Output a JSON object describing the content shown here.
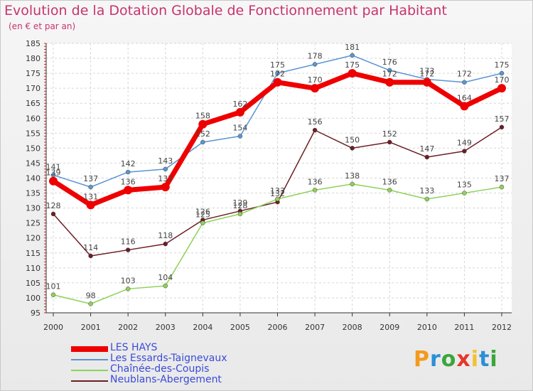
{
  "title": "Evolution de la Dotation Globale de Fonctionnement par Habitant",
  "subtitle": "(en € et par an)",
  "logo": {
    "text": "Proxiti",
    "letter_colors": [
      "#f39a1e",
      "#2c8fd6",
      "#3aa63a",
      "#e8352c",
      "#f2c12e",
      "#2c8fd6",
      "#3aa63a"
    ]
  },
  "chart_data": {
    "type": "line",
    "title": "Evolution de la Dotation Globale de Fonctionnement par Habitant",
    "subtitle": "(en € et par an)",
    "x": [
      "2000",
      "2001",
      "2002",
      "2003",
      "2004",
      "2005",
      "2006",
      "2007",
      "2008",
      "2009",
      "2010",
      "2011",
      "2012"
    ],
    "ylim": [
      95,
      185
    ],
    "yticks": [
      95,
      100,
      105,
      110,
      115,
      120,
      125,
      130,
      135,
      140,
      145,
      150,
      155,
      160,
      165,
      170,
      175,
      180,
      185
    ],
    "grid": true,
    "legend_position": "bottom-left",
    "series": [
      {
        "name": "Neublans-Abergement",
        "color": "#6b1e24",
        "values": [
          128,
          114,
          116,
          118,
          126,
          129,
          132,
          156,
          150,
          152,
          147,
          149,
          157
        ]
      },
      {
        "name": "Chaînée-des-Coupis",
        "color": "#8fd15a",
        "values": [
          101,
          98,
          103,
          104,
          125,
          128,
          133,
          136,
          138,
          136,
          133,
          135,
          137
        ]
      },
      {
        "name": "Les Essards-Taignevaux",
        "color": "#5b95d0",
        "values": [
          141,
          137,
          142,
          143,
          152,
          154,
          175,
          178,
          181,
          176,
          173,
          172,
          175
        ]
      },
      {
        "name": "LES HAYS",
        "color": "#ee0000",
        "values": [
          139,
          131,
          136,
          137,
          158,
          162,
          172,
          170,
          175,
          172,
          172,
          164,
          170
        ]
      }
    ]
  }
}
